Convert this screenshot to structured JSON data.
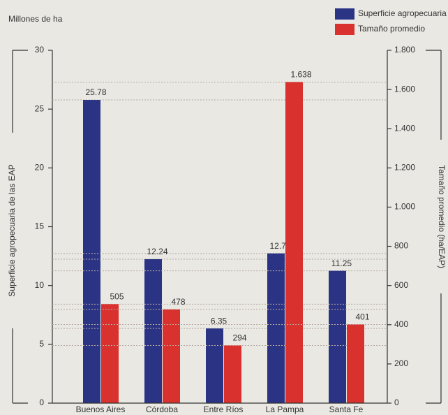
{
  "chart_data": {
    "type": "bar",
    "unit_label": "Millones de ha",
    "y_label": "Superficie agropecuaria de las EAP",
    "y2_label": "Tamaño promedio (ha/EAP)",
    "categories": [
      "Buenos Aires",
      "Córdoba",
      "Entre Ríos",
      "La Pampa",
      "Santa Fe"
    ],
    "series": [
      {
        "name": "Superficie agropecuaria",
        "color": "#2b3484",
        "values": [
          25.78,
          12.24,
          6.35,
          12.73,
          11.25
        ]
      },
      {
        "name": "Tamaño promedio",
        "color": "#d8312e",
        "axis": "y2",
        "values": [
          505,
          478,
          294,
          1638,
          401
        ],
        "value_labels": [
          "505",
          "478",
          "294",
          "1.638",
          "401"
        ]
      }
    ],
    "ylim": [
      0,
      30
    ],
    "yticks": [
      0,
      5,
      10,
      15,
      20,
      25,
      30
    ],
    "y2lim": [
      0,
      1800
    ],
    "y2ticks": [
      0,
      200,
      400,
      600,
      800,
      {
        "value": 1000,
        "label": "1.000"
      },
      {
        "value": 1200,
        "label": "1.200"
      },
      {
        "value": 1400,
        "label": "1.400"
      },
      {
        "value": 1600,
        "label": "1.600"
      },
      {
        "value": 1800,
        "label": "1.800"
      }
    ],
    "legend": "top-right"
  }
}
